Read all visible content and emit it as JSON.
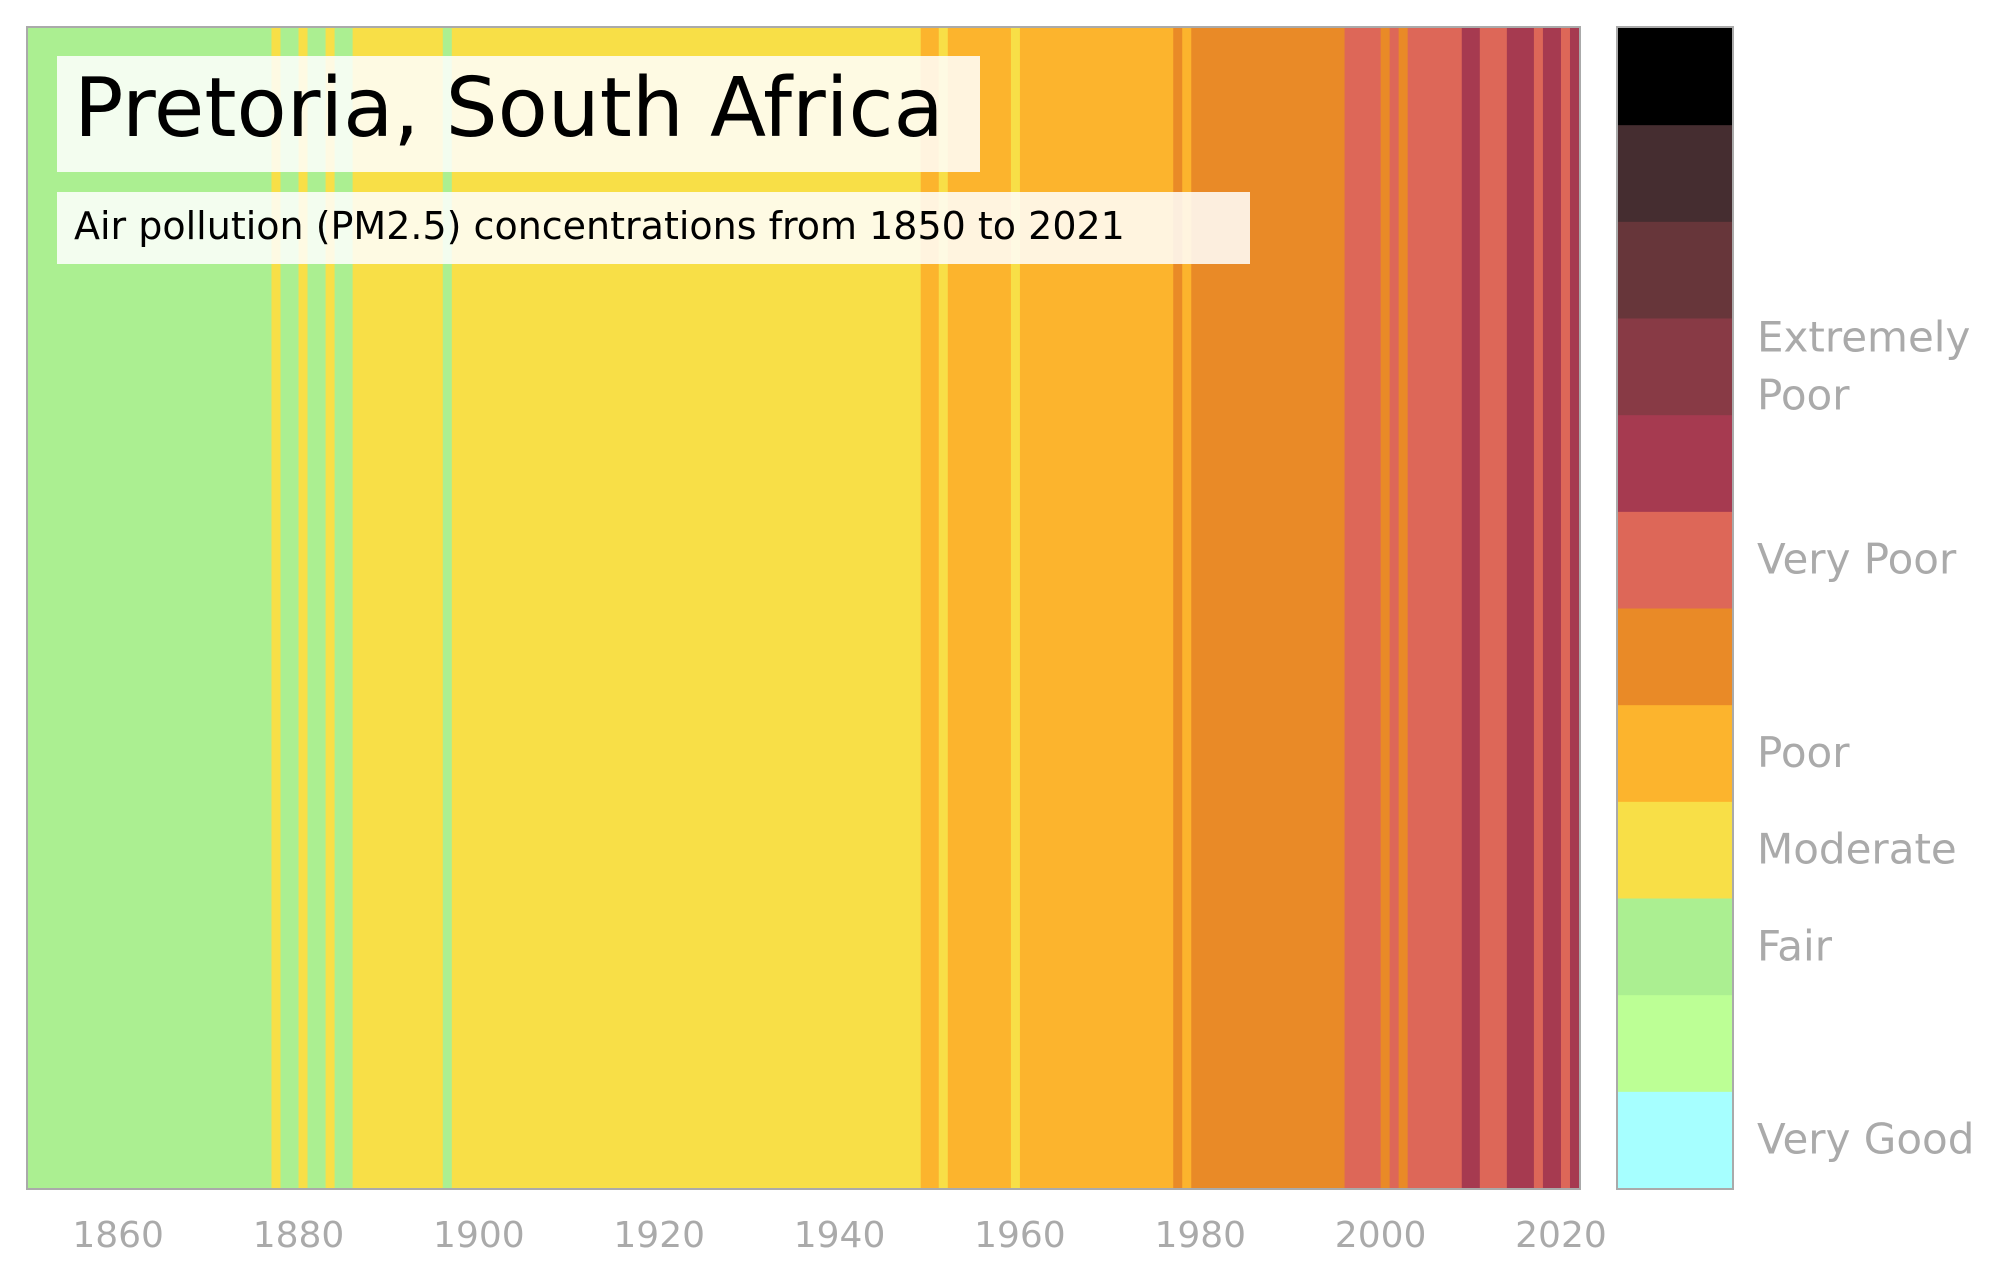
{
  "chart_data": {
    "type": "heatmap",
    "title": "Pretoria, South Africa",
    "subtitle": "Air pollution (PM2.5) concentrations from 1850 to 2021",
    "xlabel": "",
    "ylabel": "",
    "xlim": [
      1850,
      2022
    ],
    "grid": false,
    "x_ticks": [
      1860,
      1880,
      1900,
      1920,
      1940,
      1960,
      1980,
      2000,
      2020
    ],
    "legend_placement": "right",
    "color_scale": [
      {
        "level": 0,
        "color": "#a6ffff",
        "label": "Very Good"
      },
      {
        "level": 1,
        "color": "#bcff95",
        "label": ""
      },
      {
        "level": 2,
        "color": "#abef91",
        "label": "Fair"
      },
      {
        "level": 3,
        "color": "#f8df47",
        "label": "Moderate"
      },
      {
        "level": 4,
        "color": "#fcb42d",
        "label": "Poor"
      },
      {
        "level": 5,
        "color": "#e98a27",
        "label": ""
      },
      {
        "level": 6,
        "color": "#dd6758",
        "label": "Very Poor"
      },
      {
        "level": 7,
        "color": "#a63a50",
        "label": ""
      },
      {
        "level": 8,
        "color": "#883a45",
        "label": "Extremely Poor"
      },
      {
        "level": 9,
        "color": "#67363a",
        "label": ""
      },
      {
        "level": 10,
        "color": "#452d30",
        "label": ""
      },
      {
        "level": 11,
        "color": "#000000",
        "label": ""
      }
    ],
    "stripes": [
      {
        "start": 1850,
        "end": 1877,
        "level": 2
      },
      {
        "start": 1877,
        "end": 1878,
        "level": 3
      },
      {
        "start": 1878,
        "end": 1880,
        "level": 2
      },
      {
        "start": 1880,
        "end": 1881,
        "level": 3
      },
      {
        "start": 1881,
        "end": 1883,
        "level": 2
      },
      {
        "start": 1883,
        "end": 1884,
        "level": 3
      },
      {
        "start": 1884,
        "end": 1886,
        "level": 2
      },
      {
        "start": 1886,
        "end": 1896,
        "level": 3
      },
      {
        "start": 1896,
        "end": 1897,
        "level": 2
      },
      {
        "start": 1897,
        "end": 1949,
        "level": 3
      },
      {
        "start": 1949,
        "end": 1951,
        "level": 4
      },
      {
        "start": 1951,
        "end": 1952,
        "level": 3
      },
      {
        "start": 1952,
        "end": 1959,
        "level": 4
      },
      {
        "start": 1959,
        "end": 1960,
        "level": 3
      },
      {
        "start": 1960,
        "end": 1977,
        "level": 4
      },
      {
        "start": 1977,
        "end": 1978,
        "level": 5
      },
      {
        "start": 1978,
        "end": 1979,
        "level": 4
      },
      {
        "start": 1979,
        "end": 1996,
        "level": 5
      },
      {
        "start": 1996,
        "end": 2000,
        "level": 6
      },
      {
        "start": 2000,
        "end": 2001,
        "level": 5
      },
      {
        "start": 2001,
        "end": 2002,
        "level": 6
      },
      {
        "start": 2002,
        "end": 2003,
        "level": 5
      },
      {
        "start": 2003,
        "end": 2009,
        "level": 6
      },
      {
        "start": 2009,
        "end": 2011,
        "level": 7
      },
      {
        "start": 2011,
        "end": 2014,
        "level": 6
      },
      {
        "start": 2014,
        "end": 2017,
        "level": 7
      },
      {
        "start": 2017,
        "end": 2018,
        "level": 6
      },
      {
        "start": 2018,
        "end": 2020,
        "level": 7
      },
      {
        "start": 2020,
        "end": 2021,
        "level": 6
      },
      {
        "start": 2021,
        "end": 2022,
        "level": 7
      }
    ]
  }
}
